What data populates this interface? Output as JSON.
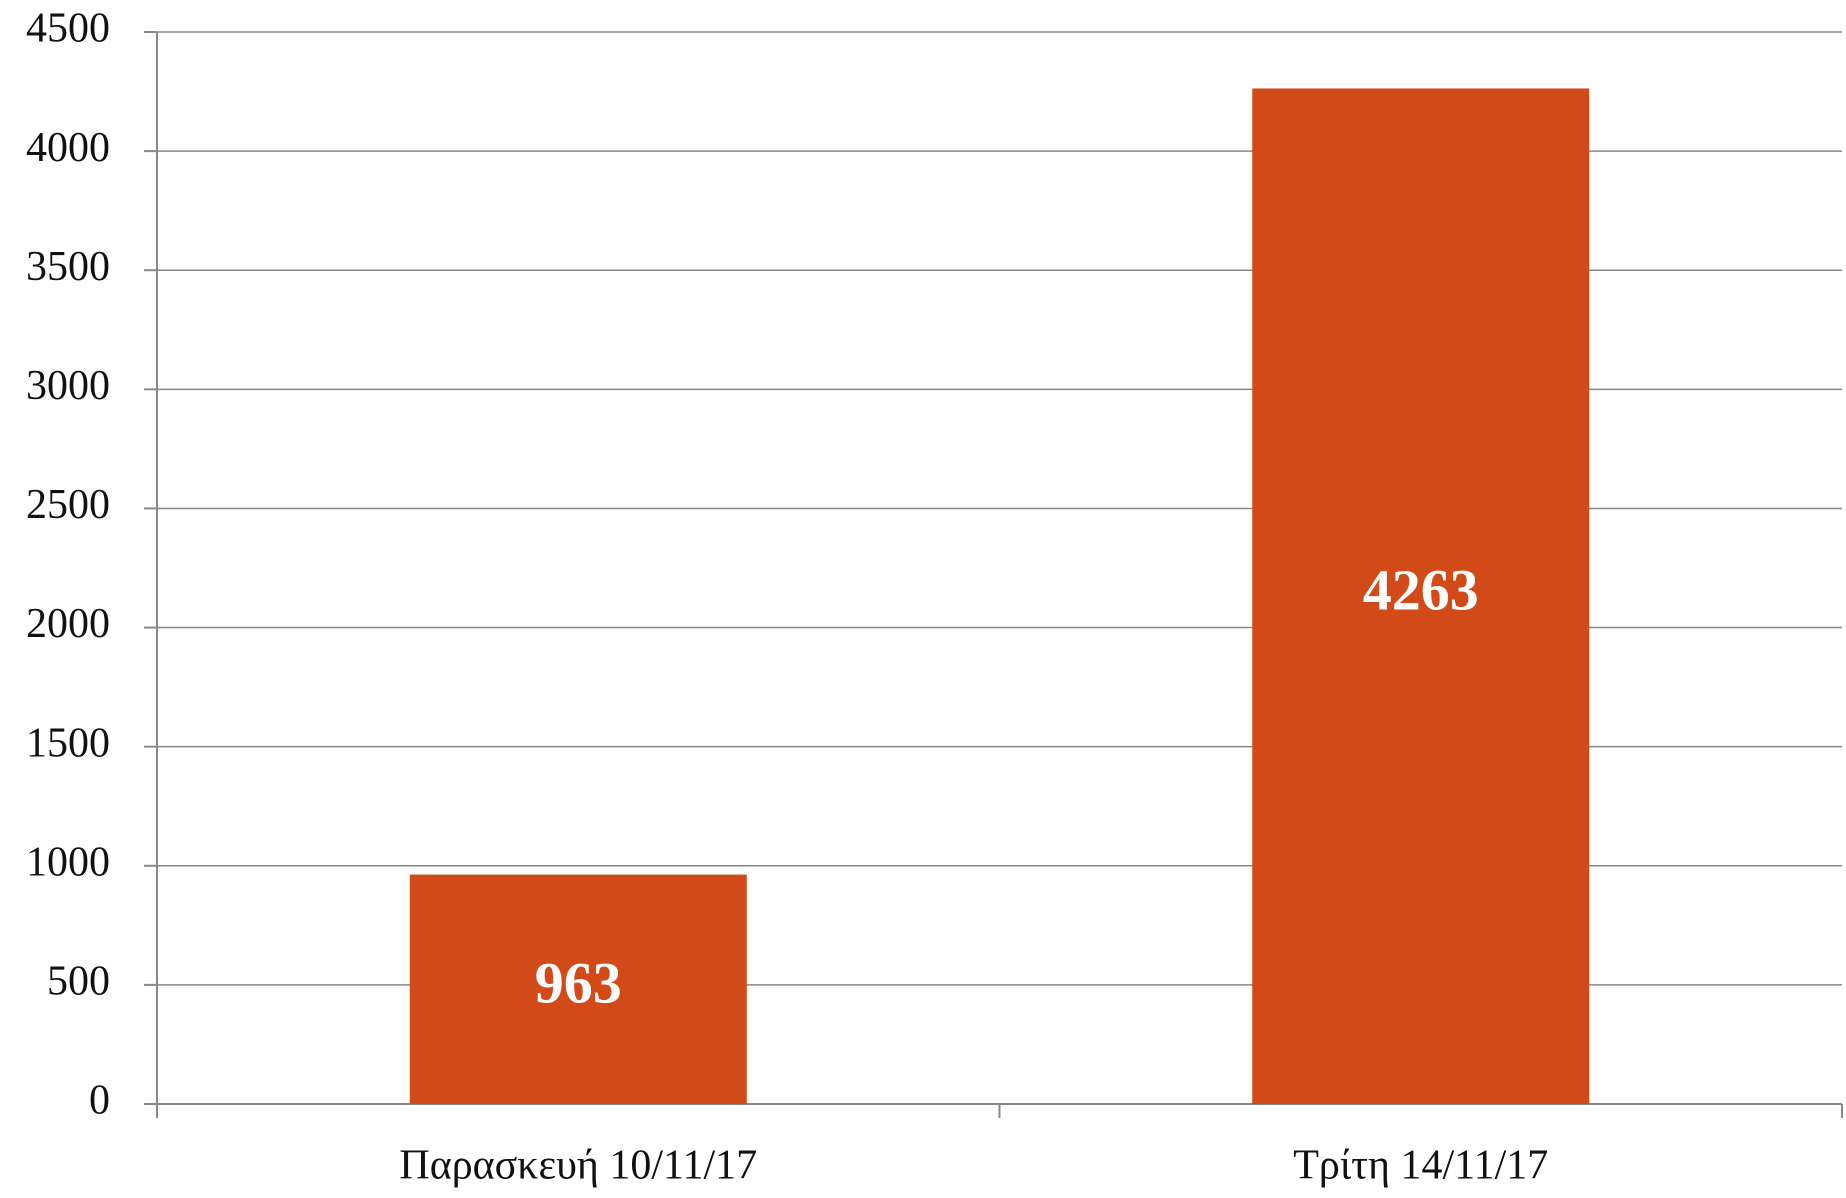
{
  "chart_data": {
    "type": "bar",
    "categories": [
      "Παρασκευή 10/11/17",
      "Τρίτη 14/11/17"
    ],
    "values": [
      963,
      4263
    ],
    "color": "#d24a18",
    "ylim": [
      0,
      4500
    ],
    "yticks": [
      0,
      500,
      1000,
      1500,
      2000,
      2500,
      3000,
      3500,
      4000,
      4500
    ],
    "grid": true
  }
}
